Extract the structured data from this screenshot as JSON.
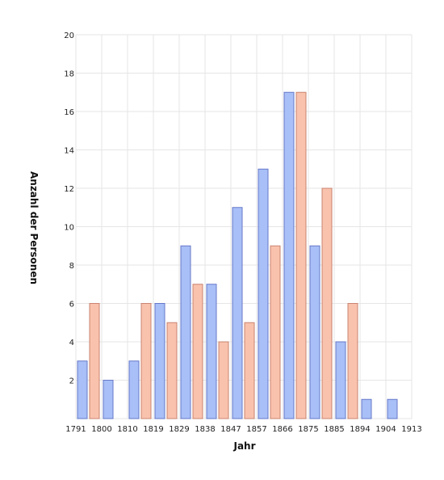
{
  "chart_data": {
    "type": "bar",
    "xlabel": "Jahr",
    "ylabel": "Anzahl der Personen",
    "x_ticks": [
      "1791",
      "1800",
      "1810",
      "1819",
      "1829",
      "1838",
      "1847",
      "1857",
      "1866",
      "1875",
      "1885",
      "1894",
      "1904",
      "1913"
    ],
    "y_ticks": [
      "2",
      "4",
      "6",
      "8",
      "10",
      "12",
      "14",
      "16",
      "18",
      "20"
    ],
    "ylim": [
      0,
      20
    ],
    "grid": true,
    "legend": "none",
    "series": [
      {
        "color": "#a8bff7",
        "stroke": "#6678c9",
        "values": [
          3,
          2,
          3,
          6,
          9,
          7,
          11,
          13,
          17,
          9,
          4,
          1,
          1
        ]
      },
      {
        "color": "#f9c2ad",
        "stroke": "#c98470",
        "values": [
          6,
          0,
          6,
          5,
          7,
          4,
          5,
          9,
          17,
          12,
          6,
          0,
          0
        ]
      }
    ]
  }
}
